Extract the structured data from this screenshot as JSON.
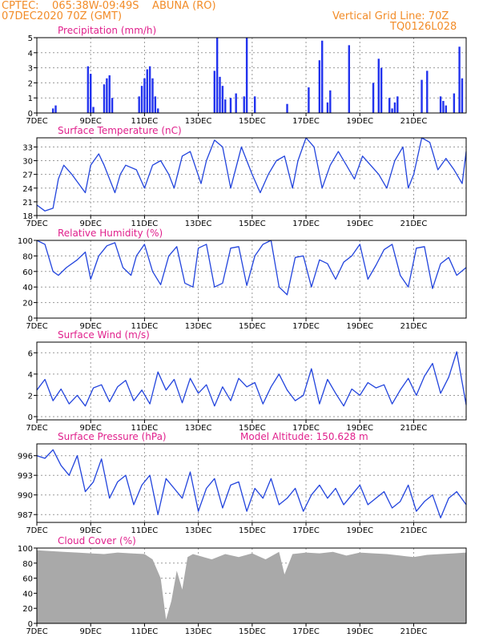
{
  "header": {
    "left_line1": "CPTEC:    065:38W-09:49S    ABUNA (RO)",
    "left_line2": "07DEC2020 70Z (GMT)",
    "right_line1": "Vertical Grid Line: 70Z",
    "right_line2": "TQ0126L028"
  },
  "colors": {
    "header_text": "#f28c28",
    "title_text": "#e0208c",
    "line": "#2244dd",
    "bar": "#2233ee",
    "cloud": "#a9a9a9",
    "grid": "#9a9a9a"
  },
  "x_tick_labels": [
    "7DEC",
    "9DEC",
    "11DEC",
    "13DEC",
    "15DEC",
    "17DEC",
    "19DEC",
    "21DEC"
  ],
  "chart_data": [
    {
      "type": "bar",
      "title": "Precipitation (mm/h)",
      "ylim": [
        0,
        5
      ],
      "yticks": [
        0,
        1,
        2,
        3,
        4,
        5
      ],
      "x_unit": "days since 7DEC",
      "x": [
        0.6,
        0.7,
        1.9,
        2.0,
        2.1,
        2.5,
        2.6,
        2.7,
        2.8,
        3.8,
        3.9,
        4.0,
        4.1,
        4.2,
        4.3,
        4.4,
        4.5,
        6.6,
        6.7,
        6.8,
        6.9,
        7.0,
        7.2,
        7.4,
        7.7,
        7.8,
        8.1,
        9.3,
        10.1,
        10.5,
        10.6,
        10.8,
        10.9,
        11.6,
        12.5,
        12.7,
        12.8,
        13.1,
        13.2,
        13.3,
        13.4,
        14.3,
        14.5,
        15.0,
        15.1,
        15.2,
        15.5,
        15.7,
        15.8
      ],
      "values": [
        0.3,
        0.5,
        3.1,
        2.6,
        0.4,
        1.9,
        2.3,
        2.5,
        1.0,
        1.1,
        1.8,
        2.3,
        2.9,
        3.1,
        2.3,
        1.1,
        0.3,
        2.8,
        5.0,
        2.4,
        1.8,
        0.9,
        1.0,
        1.3,
        1.1,
        5.0,
        1.1,
        0.6,
        1.7,
        3.5,
        4.8,
        0.7,
        1.5,
        4.5,
        2.0,
        3.6,
        3.0,
        1.0,
        0.3,
        0.7,
        1.1,
        2.2,
        2.8,
        1.1,
        0.8,
        0.5,
        1.3,
        4.4,
        2.3
      ]
    },
    {
      "type": "line",
      "title": "Surface Temperature (nC)",
      "ylim": [
        18,
        35
      ],
      "yticks": [
        18,
        21,
        24,
        27,
        30,
        33
      ],
      "x_unit": "days since 7DEC",
      "x": [
        0.0,
        0.3,
        0.6,
        0.8,
        1.0,
        1.3,
        1.8,
        2.0,
        2.3,
        2.5,
        2.9,
        3.1,
        3.3,
        3.7,
        4.0,
        4.3,
        4.6,
        4.9,
        5.1,
        5.4,
        5.7,
        6.1,
        6.3,
        6.6,
        6.9,
        7.2,
        7.6,
        8.0,
        8.3,
        8.6,
        8.9,
        9.2,
        9.5,
        9.7,
        10.0,
        10.3,
        10.6,
        10.9,
        11.2,
        11.5,
        11.8,
        12.1,
        12.4,
        12.7,
        13.0,
        13.3,
        13.6,
        13.8,
        14.0,
        14.3,
        14.6,
        14.9,
        15.2,
        15.5,
        15.8,
        15.95
      ],
      "values": [
        20.3,
        19.0,
        19.6,
        26.0,
        29.0,
        27.0,
        23.0,
        29.0,
        31.5,
        29.0,
        23.0,
        27.0,
        29.0,
        28.0,
        24.0,
        29.0,
        30.0,
        27.0,
        24.0,
        31.0,
        32.0,
        25.0,
        30.0,
        34.5,
        33.0,
        24.0,
        33.0,
        27.0,
        23.0,
        27.0,
        30.0,
        31.0,
        24.0,
        30.0,
        35.0,
        33.0,
        24.0,
        29.0,
        32.0,
        29.0,
        26.0,
        31.0,
        29.0,
        27.0,
        24.0,
        30.0,
        33.0,
        24.0,
        27.0,
        35.0,
        34.0,
        28.0,
        30.5,
        28.0,
        25.0,
        32.0
      ]
    },
    {
      "type": "line",
      "title": "Relative Humidity (%)",
      "ylim": [
        0,
        100
      ],
      "yticks": [
        0,
        20,
        40,
        60,
        80,
        100
      ],
      "x_unit": "days since 7DEC",
      "x": [
        0.0,
        0.3,
        0.6,
        0.8,
        1.1,
        1.5,
        1.8,
        2.0,
        2.3,
        2.6,
        2.9,
        3.2,
        3.5,
        3.7,
        4.0,
        4.3,
        4.6,
        4.9,
        5.2,
        5.5,
        5.8,
        6.0,
        6.3,
        6.6,
        6.9,
        7.2,
        7.5,
        7.8,
        8.1,
        8.4,
        8.7,
        9.0,
        9.3,
        9.6,
        9.9,
        10.2,
        10.5,
        10.8,
        11.1,
        11.4,
        11.7,
        12.0,
        12.3,
        12.6,
        12.9,
        13.2,
        13.5,
        13.8,
        14.1,
        14.4,
        14.7,
        15.0,
        15.3,
        15.6,
        15.95
      ],
      "values": [
        100.0,
        95.0,
        60.0,
        55.0,
        65.0,
        75.0,
        85.0,
        50.0,
        80.0,
        93.0,
        97.0,
        65.0,
        55.0,
        80.0,
        95.0,
        60.0,
        43.0,
        80.0,
        92.0,
        45.0,
        40.0,
        90.0,
        95.0,
        40.0,
        45.0,
        90.0,
        92.0,
        42.0,
        80.0,
        95.0,
        100.0,
        40.0,
        30.0,
        78.0,
        80.0,
        40.0,
        75.0,
        70.0,
        50.0,
        72.0,
        80.0,
        95.0,
        50.0,
        68.0,
        88.0,
        95.0,
        55.0,
        40.0,
        90.0,
        92.0,
        38.0,
        70.0,
        78.0,
        55.0,
        65.0
      ]
    },
    {
      "type": "line",
      "title": "Surface Wind (m/s)",
      "ylim": [
        -0.3,
        7
      ],
      "yticks": [
        0,
        2,
        4,
        6
      ],
      "x_unit": "days since 7DEC",
      "x": [
        0.0,
        0.3,
        0.6,
        0.9,
        1.2,
        1.5,
        1.8,
        2.1,
        2.4,
        2.7,
        3.0,
        3.3,
        3.6,
        3.9,
        4.2,
        4.5,
        4.8,
        5.1,
        5.4,
        5.7,
        6.0,
        6.3,
        6.6,
        6.9,
        7.2,
        7.5,
        7.8,
        8.1,
        8.4,
        8.7,
        9.0,
        9.3,
        9.6,
        9.9,
        10.2,
        10.5,
        10.8,
        11.1,
        11.4,
        11.7,
        12.0,
        12.3,
        12.6,
        12.9,
        13.2,
        13.5,
        13.8,
        14.1,
        14.4,
        14.7,
        15.0,
        15.3,
        15.6,
        15.95
      ],
      "values": [
        2.5,
        3.5,
        1.5,
        2.6,
        1.2,
        2.0,
        1.0,
        2.7,
        3.0,
        1.4,
        2.8,
        3.4,
        1.5,
        2.5,
        1.2,
        4.2,
        2.5,
        3.5,
        1.3,
        3.6,
        2.2,
        3.0,
        1.0,
        2.8,
        1.5,
        3.6,
        2.8,
        3.2,
        1.2,
        2.8,
        4.0,
        2.5,
        1.5,
        2.0,
        4.5,
        1.2,
        3.5,
        2.2,
        1.0,
        2.6,
        2.0,
        3.2,
        2.7,
        3.0,
        1.2,
        2.5,
        3.6,
        2.0,
        3.8,
        5.0,
        2.2,
        3.7,
        6.1,
        1.1
      ]
    },
    {
      "type": "line",
      "title": "Surface Pressure (hPa)",
      "subtitle": "Model Altitude: 150.628 m",
      "ylim": [
        985.8,
        997.8
      ],
      "yticks": [
        987,
        990,
        993,
        996
      ],
      "x_unit": "days since 7DEC",
      "x": [
        0.0,
        0.3,
        0.6,
        0.9,
        1.2,
        1.5,
        1.8,
        2.1,
        2.4,
        2.7,
        3.0,
        3.3,
        3.6,
        3.9,
        4.2,
        4.5,
        4.8,
        5.1,
        5.4,
        5.7,
        6.0,
        6.3,
        6.6,
        6.9,
        7.2,
        7.5,
        7.8,
        8.1,
        8.4,
        8.7,
        9.0,
        9.3,
        9.6,
        9.9,
        10.2,
        10.5,
        10.8,
        11.1,
        11.4,
        11.7,
        12.0,
        12.3,
        12.6,
        12.9,
        13.2,
        13.5,
        13.8,
        14.1,
        14.4,
        14.7,
        15.0,
        15.3,
        15.6,
        15.95
      ],
      "values": [
        996.0,
        995.6,
        996.9,
        994.5,
        993.0,
        996.0,
        990.5,
        992.0,
        995.5,
        989.5,
        992.0,
        993.0,
        988.5,
        991.5,
        993.0,
        987.0,
        992.5,
        991.0,
        989.5,
        993.5,
        987.5,
        991.0,
        992.5,
        988.0,
        991.5,
        992.0,
        987.5,
        991.0,
        989.5,
        992.5,
        988.5,
        989.5,
        991.0,
        987.5,
        990.0,
        991.5,
        989.5,
        991.0,
        988.5,
        990.0,
        991.5,
        988.5,
        989.5,
        990.5,
        988.0,
        989.0,
        991.5,
        987.5,
        989.0,
        990.0,
        986.5,
        989.5,
        990.5,
        988.5
      ]
    },
    {
      "type": "area",
      "title": "Cloud Cover (%)",
      "ylim": [
        0,
        100
      ],
      "yticks": [
        0,
        20,
        40,
        60,
        80,
        100
      ],
      "x_unit": "days since 7DEC",
      "x": [
        0.0,
        0.5,
        1.0,
        1.5,
        2.0,
        2.5,
        3.0,
        3.5,
        4.0,
        4.3,
        4.6,
        4.8,
        5.0,
        5.2,
        5.4,
        5.6,
        5.8,
        6.0,
        6.5,
        7.0,
        7.5,
        8.0,
        8.5,
        9.0,
        9.2,
        9.5,
        10.0,
        10.5,
        11.0,
        11.5,
        12.0,
        12.5,
        13.0,
        13.5,
        14.0,
        14.5,
        15.0,
        15.5,
        15.95
      ],
      "values": [
        97,
        96,
        95,
        94,
        93,
        92,
        94,
        93,
        92,
        85,
        60,
        5,
        30,
        70,
        45,
        88,
        92,
        90,
        85,
        92,
        88,
        93,
        85,
        95,
        65,
        92,
        94,
        93,
        95,
        90,
        94,
        93,
        92,
        90,
        88,
        91,
        92,
        93,
        94
      ]
    }
  ]
}
